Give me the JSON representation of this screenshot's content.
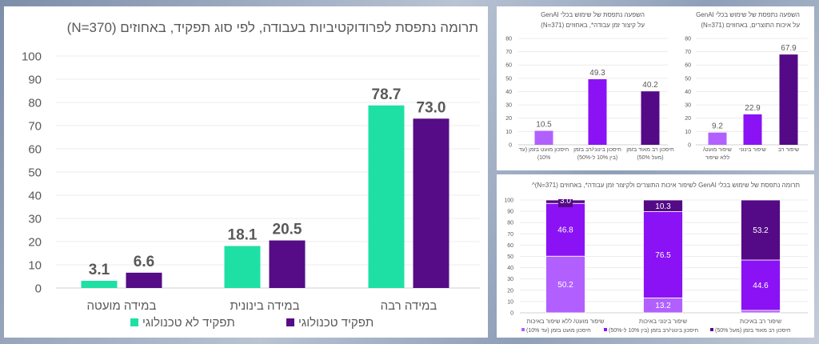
{
  "chart_data": [
    {
      "type": "bar",
      "title": "תרומה נתפסת לפרודוקטיביות בעבודה, לפי סוג תפקיד, באחוזים (N=370)",
      "categories": [
        "במידה מועטה",
        "במידה בינונית",
        "במידה רבה"
      ],
      "series": [
        {
          "name": "תפקיד לא טכנולוגי",
          "values": [
            3.1,
            18.1,
            78.7
          ],
          "color": "#1ee0a4"
        },
        {
          "name": "תפקיד טכנולוגי",
          "values": [
            6.6,
            20.5,
            73.0
          ],
          "color": "#560c86"
        }
      ],
      "ylim": [
        0,
        100
      ],
      "yticks": [
        0,
        10,
        20,
        30,
        40,
        50,
        60,
        70,
        80,
        90,
        100
      ],
      "grid": true,
      "legend": "bottom"
    },
    {
      "type": "bar",
      "title": [
        "השפעה נתפסת של שימוש בכלי GenAI",
        "על קיצור זמן עבודה*, באחוזים (N=371)"
      ],
      "categories": [
        [
          "חיסכון מועט בזמן (עד",
          "10%)"
        ],
        [
          "חיסכון בינוני/רב בזמן",
          "(בין 10% ל-50%)"
        ],
        [
          "חיסכון רב מאוד בזמן",
          "(מעל 50%)"
        ]
      ],
      "values": [
        10.5,
        49.3,
        40.2
      ],
      "colors": [
        "#b160ff",
        "#8a12f4",
        "#540a86"
      ],
      "ylim": [
        0,
        80
      ],
      "yticks": [
        0,
        10,
        20,
        30,
        40,
        50,
        60,
        70,
        80
      ],
      "grid": true
    },
    {
      "type": "bar",
      "title": [
        "השפעה נתפסת של שימוש בכלי GenAI",
        "על איכות התוצרים, באחוזים (N=371)"
      ],
      "categories": [
        [
          "שיפור מועט/",
          "ללא שיפור"
        ],
        [
          "שיפור בינוני"
        ],
        [
          "שיפור רב"
        ]
      ],
      "values": [
        9.2,
        22.9,
        67.9
      ],
      "colors": [
        "#b160ff",
        "#8a12f4",
        "#540a86"
      ],
      "ylim": [
        0,
        80
      ],
      "yticks": [
        0,
        10,
        20,
        30,
        40,
        50,
        60,
        70,
        80
      ],
      "grid": true
    },
    {
      "type": "bar",
      "stacked": true,
      "title": "תרומה נתפסת של שימוש בכלי GenAI לשיפור איכות התוצרים ולקיצור זמן עבודה*, באחוזים (N=371)^",
      "categories": [
        "שיפור מועט/ ללא שיפור באיכות",
        "שיפור בינוני באיכות",
        "שיפור רב באיכות"
      ],
      "series": [
        {
          "name": "חיסכון מועט בזמן (עד 10%)",
          "values": [
            50.2,
            13.2,
            2.2
          ],
          "color": "#b160ff"
        },
        {
          "name": "חיסכון בינוני/רב בזמן (בין 10% ל-50%)",
          "values": [
            46.8,
            76.5,
            44.6
          ],
          "color": "#8a12f4"
        },
        {
          "name": "חיסכון רב מאוד בזמן (מעל 50%)",
          "values": [
            3.0,
            10.3,
            53.2
          ],
          "color": "#540a86"
        }
      ],
      "ylim": [
        0,
        100
      ],
      "yticks": [
        0,
        10,
        20,
        30,
        40,
        50,
        60,
        70,
        80,
        90,
        100
      ],
      "grid": true,
      "legend": "bottom"
    }
  ]
}
